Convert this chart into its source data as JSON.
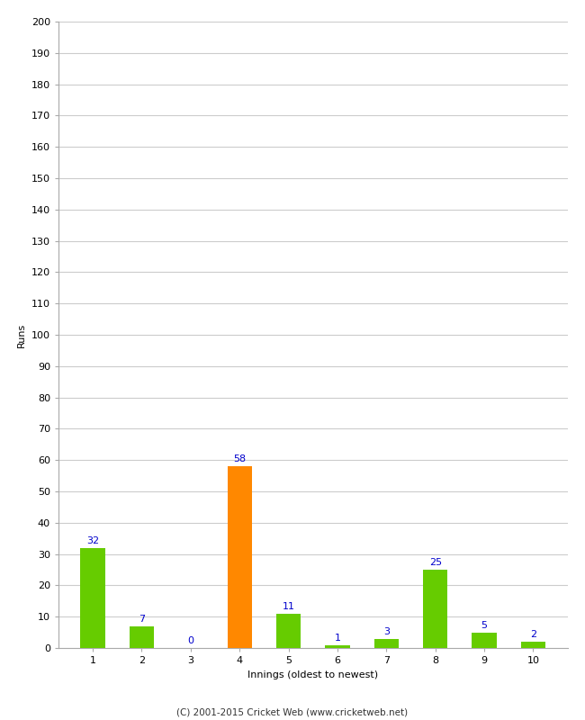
{
  "xlabel": "Innings (oldest to newest)",
  "ylabel": "Runs",
  "categories": [
    "1",
    "2",
    "3",
    "4",
    "5",
    "6",
    "7",
    "8",
    "9",
    "10"
  ],
  "values": [
    32,
    7,
    0,
    58,
    11,
    1,
    3,
    25,
    5,
    2
  ],
  "bar_colors": [
    "#66cc00",
    "#66cc00",
    "#66cc00",
    "#ff8800",
    "#66cc00",
    "#66cc00",
    "#66cc00",
    "#66cc00",
    "#66cc00",
    "#66cc00"
  ],
  "ylim": [
    0,
    200
  ],
  "yticks": [
    0,
    10,
    20,
    30,
    40,
    50,
    60,
    70,
    80,
    90,
    100,
    110,
    120,
    130,
    140,
    150,
    160,
    170,
    180,
    190,
    200
  ],
  "label_color": "#0000cc",
  "background_color": "#ffffff",
  "grid_color": "#cccccc",
  "footer": "(C) 2001-2015 Cricket Web (www.cricketweb.net)",
  "bar_width": 0.5
}
